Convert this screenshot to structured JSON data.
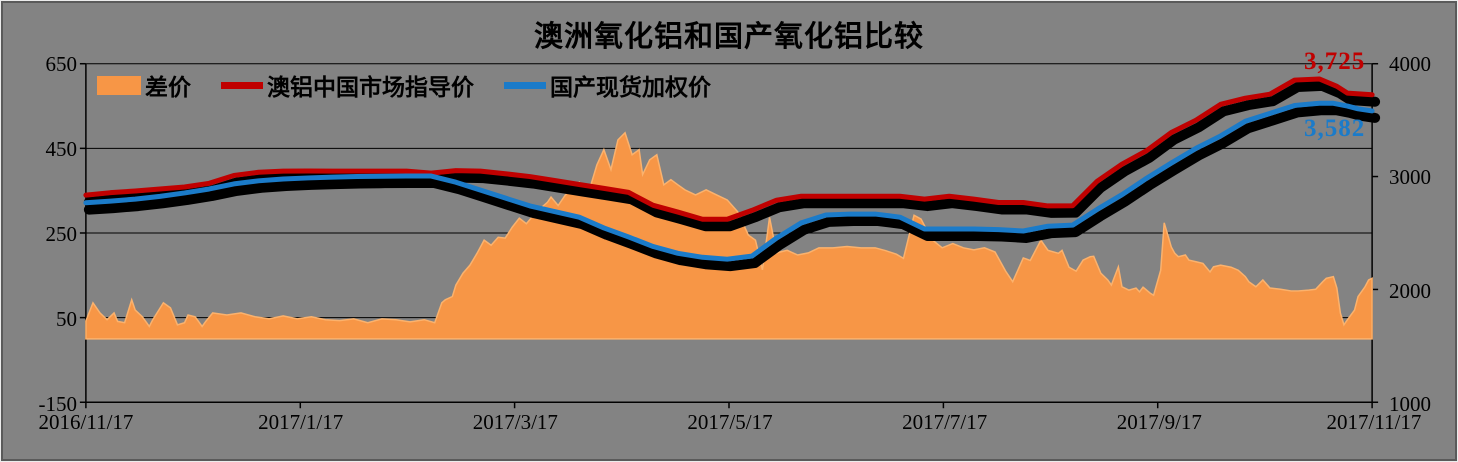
{
  "title": "澳洲氧化铝和国产氧化铝比较",
  "legend": {
    "items": [
      {
        "label": "差价",
        "swatch": "area"
      },
      {
        "label": "澳铝中国市场指导价",
        "swatch": "line"
      },
      {
        "label": "国产现货加权价",
        "swatch": "line"
      }
    ]
  },
  "end_labels": {
    "aus": "3,725",
    "dom": "3,582"
  },
  "colors": {
    "background": "#838383",
    "frame_outer": "#ECECEC",
    "frame_inner": "#5A5A5A",
    "gridline": "#000000",
    "axis": "#000000",
    "text": "#000000",
    "area_fill": "#F79646",
    "area_edge": "#FBB26D",
    "aus_line": "#C00000",
    "dom_line": "#1B7BC9",
    "line_shadow": "#000000"
  },
  "chart_data": {
    "type": "area+line combo",
    "title": "澳洲氧化铝和国产氧化铝比较",
    "grid": "horizontal",
    "legend_position": "top-left",
    "x_axis": {
      "tick_labels": [
        "2016/11/17",
        "2017/1/17",
        "2017/3/17",
        "2017/5/17",
        "2017/7/17",
        "2017/9/17",
        "2017/11/17"
      ],
      "unit": "date",
      "span_days": 365
    },
    "y_left": {
      "ticks": [
        650,
        450,
        250,
        50,
        -150
      ],
      "min": -150,
      "max": 650,
      "applies_to": "差价"
    },
    "y_right": {
      "ticks": [
        4000,
        3000,
        2000,
        1000
      ],
      "min": 1000,
      "max": 4000,
      "applies_to": "price lines"
    },
    "series": [
      {
        "name": "差价",
        "type": "area",
        "axis": "left",
        "color": "#F79646",
        "baseline": 0,
        "points": [
          [
            0,
            42
          ],
          [
            2,
            85
          ],
          [
            4,
            61
          ],
          [
            6,
            45
          ],
          [
            8,
            61
          ],
          [
            9,
            41
          ],
          [
            11,
            38
          ],
          [
            13,
            92
          ],
          [
            14,
            68
          ],
          [
            16,
            52
          ],
          [
            18,
            29
          ],
          [
            19,
            45
          ],
          [
            22,
            85
          ],
          [
            24,
            73
          ],
          [
            26,
            33
          ],
          [
            28,
            38
          ],
          [
            29,
            56
          ],
          [
            31,
            52
          ],
          [
            33,
            29
          ],
          [
            34,
            41
          ],
          [
            36,
            61
          ],
          [
            40,
            56
          ],
          [
            44,
            61
          ],
          [
            48,
            52
          ],
          [
            52,
            47
          ],
          [
            56,
            54
          ],
          [
            60,
            47
          ],
          [
            64,
            52
          ],
          [
            68,
            45
          ],
          [
            72,
            43
          ],
          [
            76,
            47
          ],
          [
            80,
            38
          ],
          [
            84,
            47
          ],
          [
            88,
            45
          ],
          [
            92,
            40
          ],
          [
            96,
            45
          ],
          [
            99,
            38
          ],
          [
            101,
            85
          ],
          [
            102,
            92
          ],
          [
            104,
            100
          ],
          [
            105,
            127
          ],
          [
            107,
            155
          ],
          [
            109,
            174
          ],
          [
            111,
            202
          ],
          [
            113,
            233
          ],
          [
            115,
            221
          ],
          [
            117,
            240
          ],
          [
            119,
            238
          ],
          [
            121,
            264
          ],
          [
            123,
            285
          ],
          [
            125,
            272
          ],
          [
            127,
            292
          ],
          [
            129,
            308
          ],
          [
            131,
            323
          ],
          [
            132,
            335
          ],
          [
            134,
            315
          ],
          [
            136,
            339
          ],
          [
            138,
            358
          ],
          [
            140,
            370
          ],
          [
            141,
            344
          ],
          [
            143,
            355
          ],
          [
            145,
            411
          ],
          [
            147,
            447
          ],
          [
            149,
            400
          ],
          [
            151,
            470
          ],
          [
            153,
            487
          ],
          [
            155,
            435
          ],
          [
            157,
            447
          ],
          [
            158,
            388
          ],
          [
            160,
            423
          ],
          [
            162,
            435
          ],
          [
            164,
            364
          ],
          [
            166,
            376
          ],
          [
            168,
            364
          ],
          [
            170,
            352
          ],
          [
            173,
            340
          ],
          [
            176,
            352
          ],
          [
            179,
            340
          ],
          [
            182,
            328
          ],
          [
            185,
            300
          ],
          [
            188,
            245
          ],
          [
            190,
            233
          ],
          [
            192,
            163
          ],
          [
            194,
            287
          ],
          [
            196,
            203
          ],
          [
            199,
            209
          ],
          [
            202,
            198
          ],
          [
            205,
            203
          ],
          [
            208,
            215
          ],
          [
            212,
            215
          ],
          [
            216,
            218
          ],
          [
            220,
            215
          ],
          [
            224,
            215
          ],
          [
            227,
            208
          ],
          [
            230,
            200
          ],
          [
            232,
            190
          ],
          [
            235,
            292
          ],
          [
            237,
            283
          ],
          [
            240,
            235
          ],
          [
            243,
            215
          ],
          [
            246,
            225
          ],
          [
            249,
            215
          ],
          [
            252,
            210
          ],
          [
            255,
            215
          ],
          [
            258,
            205
          ],
          [
            261,
            160
          ],
          [
            263,
            135
          ],
          [
            266,
            191
          ],
          [
            268,
            185
          ],
          [
            271,
            233
          ],
          [
            273,
            209
          ],
          [
            276,
            202
          ],
          [
            277,
            209
          ],
          [
            279,
            169
          ],
          [
            281,
            160
          ],
          [
            283,
            186
          ],
          [
            285,
            194
          ],
          [
            286,
            195
          ],
          [
            288,
            155
          ],
          [
            290,
            139
          ],
          [
            291,
            127
          ],
          [
            293,
            170
          ],
          [
            294,
            123
          ],
          [
            296,
            115
          ],
          [
            298,
            120
          ],
          [
            299,
            111
          ],
          [
            300,
            122
          ],
          [
            302,
            108
          ],
          [
            303,
            103
          ],
          [
            305,
            162
          ],
          [
            306,
            274
          ],
          [
            308,
            217
          ],
          [
            309,
            202
          ],
          [
            310,
            194
          ],
          [
            312,
            198
          ],
          [
            313,
            186
          ],
          [
            315,
            182
          ],
          [
            317,
            178
          ],
          [
            319,
            158
          ],
          [
            320,
            170
          ],
          [
            322,
            174
          ],
          [
            325,
            169
          ],
          [
            327,
            162
          ],
          [
            329,
            147
          ],
          [
            330,
            135
          ],
          [
            332,
            123
          ],
          [
            334,
            139
          ],
          [
            336,
            120
          ],
          [
            339,
            117
          ],
          [
            342,
            113
          ],
          [
            344,
            113
          ],
          [
            347,
            115
          ],
          [
            349,
            117
          ],
          [
            351,
            135
          ],
          [
            352,
            143
          ],
          [
            354,
            147
          ],
          [
            355,
            120
          ],
          [
            356,
            61
          ],
          [
            357,
            33
          ],
          [
            358,
            45
          ],
          [
            360,
            68
          ],
          [
            361,
            100
          ],
          [
            363,
            123
          ],
          [
            364,
            139
          ],
          [
            365,
            143
          ]
        ]
      },
      {
        "name": "澳铝中国市场指导价",
        "type": "line",
        "axis": "right",
        "color": "#C00000",
        "end_label": "3,725",
        "points": [
          [
            0,
            2835
          ],
          [
            7,
            2857
          ],
          [
            14,
            2872
          ],
          [
            21,
            2890
          ],
          [
            28,
            2908
          ],
          [
            35,
            2940
          ],
          [
            42,
            3010
          ],
          [
            49,
            3038
          ],
          [
            56,
            3048
          ],
          [
            63,
            3050
          ],
          [
            70,
            3048
          ],
          [
            77,
            3048
          ],
          [
            84,
            3048
          ],
          [
            91,
            3048
          ],
          [
            98,
            3030
          ],
          [
            105,
            3052
          ],
          [
            112,
            3048
          ],
          [
            119,
            3025
          ],
          [
            126,
            3000
          ],
          [
            133,
            2965
          ],
          [
            140,
            2930
          ],
          [
            147,
            2895
          ],
          [
            154,
            2860
          ],
          [
            161,
            2745
          ],
          [
            168,
            2685
          ],
          [
            175,
            2622
          ],
          [
            182,
            2622
          ],
          [
            189,
            2700
          ],
          [
            196,
            2790
          ],
          [
            203,
            2826
          ],
          [
            210,
            2826
          ],
          [
            217,
            2826
          ],
          [
            224,
            2826
          ],
          [
            231,
            2826
          ],
          [
            238,
            2800
          ],
          [
            245,
            2826
          ],
          [
            252,
            2800
          ],
          [
            259,
            2770
          ],
          [
            266,
            2770
          ],
          [
            273,
            2740
          ],
          [
            280,
            2742
          ],
          [
            287,
            2960
          ],
          [
            294,
            3110
          ],
          [
            301,
            3230
          ],
          [
            308,
            3390
          ],
          [
            315,
            3500
          ],
          [
            322,
            3640
          ],
          [
            329,
            3695
          ],
          [
            336,
            3730
          ],
          [
            343,
            3855
          ],
          [
            350,
            3865
          ],
          [
            355,
            3800
          ],
          [
            358,
            3740
          ],
          [
            365,
            3725
          ]
        ]
      },
      {
        "name": "国产现货加权价",
        "type": "line",
        "axis": "right",
        "color": "#1B7BC9",
        "end_label": "3,582",
        "points": [
          [
            0,
            2768
          ],
          [
            7,
            2782
          ],
          [
            14,
            2800
          ],
          [
            21,
            2825
          ],
          [
            28,
            2855
          ],
          [
            35,
            2890
          ],
          [
            42,
            2935
          ],
          [
            49,
            2962
          ],
          [
            56,
            2978
          ],
          [
            63,
            2988
          ],
          [
            70,
            2995
          ],
          [
            77,
            3000
          ],
          [
            84,
            3003
          ],
          [
            91,
            3005
          ],
          [
            98,
            3005
          ],
          [
            105,
            2950
          ],
          [
            112,
            2880
          ],
          [
            119,
            2810
          ],
          [
            126,
            2740
          ],
          [
            133,
            2690
          ],
          [
            140,
            2640
          ],
          [
            147,
            2545
          ],
          [
            154,
            2465
          ],
          [
            161,
            2380
          ],
          [
            168,
            2320
          ],
          [
            175,
            2285
          ],
          [
            182,
            2268
          ],
          [
            189,
            2295
          ],
          [
            196,
            2455
          ],
          [
            203,
            2590
          ],
          [
            210,
            2660
          ],
          [
            217,
            2668
          ],
          [
            224,
            2668
          ],
          [
            231,
            2640
          ],
          [
            238,
            2535
          ],
          [
            245,
            2535
          ],
          [
            252,
            2535
          ],
          [
            259,
            2530
          ],
          [
            266,
            2518
          ],
          [
            273,
            2560
          ],
          [
            280,
            2570
          ],
          [
            287,
            2710
          ],
          [
            294,
            2840
          ],
          [
            301,
            2985
          ],
          [
            308,
            3120
          ],
          [
            315,
            3250
          ],
          [
            322,
            3360
          ],
          [
            329,
            3490
          ],
          [
            336,
            3560
          ],
          [
            343,
            3630
          ],
          [
            350,
            3650
          ],
          [
            354,
            3650
          ],
          [
            358,
            3625
          ],
          [
            361,
            3600
          ],
          [
            365,
            3582
          ]
        ]
      }
    ]
  }
}
